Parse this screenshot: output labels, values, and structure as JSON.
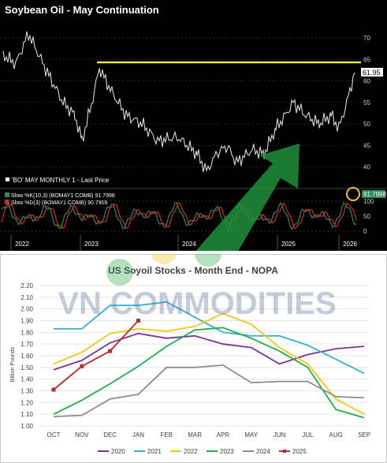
{
  "top_chart": {
    "title": "Soybean Oil - May Continuation",
    "legend_price": "'BO' MAY MONTHLY 1 - Last Price",
    "last_price_label": "61.95",
    "stoch_k_label": "Slow %K(10,3) (BOMAY1 COMB) 91.7998",
    "stoch_d_label": "Slow %D(3) (BOMAY1 COMB)    90.7909",
    "stoch_value_badge": "91.7998",
    "price_ticks": [
      "70",
      "65",
      "60",
      "55",
      "50",
      "45",
      "40"
    ],
    "stoch_ticks": [
      "100",
      "50",
      "0"
    ],
    "year_labels": [
      "2022",
      "2023",
      "2024",
      "2025",
      "2026"
    ],
    "resistance_level": 64.3,
    "colors": {
      "background": "#000000",
      "price": "#d8d8d8",
      "resistance": "#f2f23a",
      "slow_k": "#2e8b57",
      "slow_d": "#d02a2a",
      "circle": "#f2c21b"
    }
  },
  "watermark": "VN COMMODITIES",
  "chart_data": {
    "type": "line",
    "title": "US Soyoil Stocks - Month End - NOPA",
    "ylabel": "Billion Pounds",
    "xlabel": "",
    "ylim": [
      1.0,
      2.2
    ],
    "yticks": [
      "1.00",
      "1.10",
      "1.20",
      "1.30",
      "1.40",
      "1.50",
      "1.60",
      "1.70",
      "1.80",
      "1.90",
      "2.00",
      "2.10",
      "2.20"
    ],
    "categories": [
      "OCT",
      "NOV",
      "DEC",
      "JAN",
      "FEB",
      "MAR",
      "APR",
      "MAY",
      "JUN",
      "JUL",
      "AUG",
      "SEP"
    ],
    "legend_position": "bottom",
    "series": [
      {
        "name": "2020",
        "color": "#7b3294",
        "values": [
          1.48,
          1.56,
          1.71,
          1.79,
          1.75,
          1.77,
          1.7,
          1.67,
          1.53,
          1.61,
          1.66,
          1.68
        ]
      },
      {
        "name": "2021",
        "color": "#36b0d8",
        "values": [
          1.83,
          1.83,
          2.03,
          2.03,
          2.06,
          1.93,
          1.8,
          1.77,
          1.77,
          1.69,
          1.57,
          1.45
        ]
      },
      {
        "name": "2022",
        "color": "#f5c518",
        "values": [
          1.53,
          1.63,
          1.79,
          1.83,
          1.81,
          1.85,
          1.96,
          1.87,
          1.67,
          1.53,
          1.23,
          1.1
        ]
      },
      {
        "name": "2023",
        "color": "#1fae4b",
        "values": [
          1.1,
          1.22,
          1.36,
          1.51,
          1.68,
          1.82,
          1.84,
          1.75,
          1.64,
          1.5,
          1.14,
          1.07
        ]
      },
      {
        "name": "2024",
        "color": "#8c8c8c",
        "values": [
          1.08,
          1.09,
          1.23,
          1.27,
          1.5,
          1.5,
          1.52,
          1.37,
          1.38,
          1.38,
          1.25,
          1.24
        ]
      },
      {
        "name": "2025",
        "color": "#c0272d",
        "values": [
          1.31,
          1.51,
          1.64,
          1.9,
          null,
          null,
          null,
          null,
          null,
          null,
          null,
          null
        ]
      }
    ]
  }
}
